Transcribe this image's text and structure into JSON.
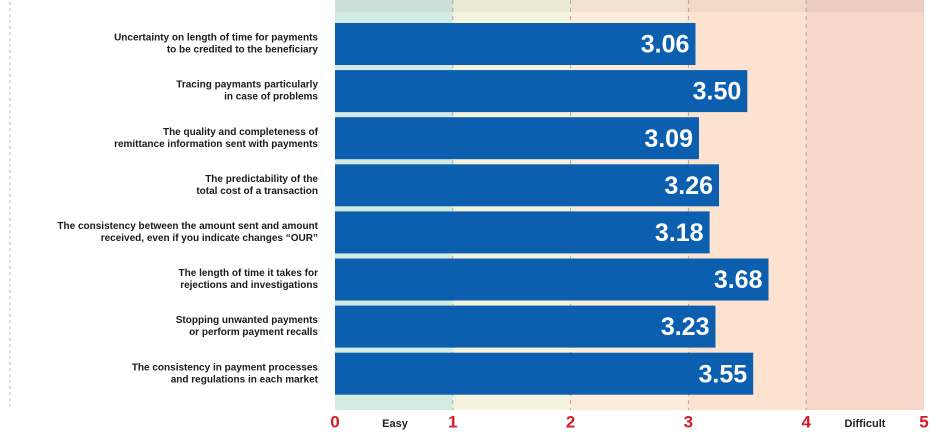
{
  "chart_data": {
    "type": "hbar",
    "categories": [
      [
        "Uncertainty on length of time for payments",
        "to be credited to the beneficiary"
      ],
      [
        "Tracing paymants particularly",
        "in case of problems"
      ],
      [
        "The quality and completeness of",
        "remittance information sent with payments"
      ],
      [
        "The predictability of the",
        "total cost of a transaction"
      ],
      [
        "The consistency between the amount sent and amount",
        "received, even if you indicate changes “OUR”"
      ],
      [
        "The length of time it takes for",
        "rejections and investigations"
      ],
      [
        "Stopping unwanted payments",
        "or perform payment recalls"
      ],
      [
        "The consistency in payment processes",
        "and regulations in each market"
      ]
    ],
    "values": [
      3.06,
      3.5,
      3.09,
      3.26,
      3.18,
      3.68,
      3.23,
      3.55
    ],
    "value_labels": [
      "3.06",
      "3.50",
      "3.09",
      "3.26",
      "3.18",
      "3.68",
      "3.23",
      "3.55"
    ],
    "color": "#0b5fae",
    "xlim": [
      0,
      5
    ],
    "xticks": [
      0,
      1,
      2,
      3,
      4,
      5
    ],
    "band_colors": [
      "#d3ebe2",
      "#f4f3de",
      "#fcecdb",
      "#fce3d1",
      "#f7d5c9"
    ],
    "annotations": [
      "Easy",
      "Difficult"
    ],
    "grid": true
  }
}
